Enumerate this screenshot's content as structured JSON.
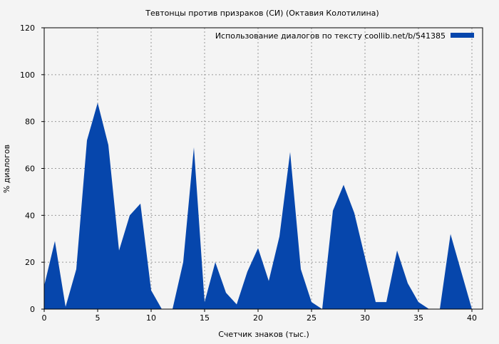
{
  "chart_data": {
    "type": "area",
    "title": "Тевтонцы против призраков (СИ) (Октавия Колотилина)",
    "xlabel": "Счетчик знаков (тыс.)",
    "ylabel": "% диалогов",
    "xlim": [
      0,
      41
    ],
    "ylim": [
      0,
      120
    ],
    "xticks": [
      0,
      5,
      10,
      15,
      20,
      25,
      30,
      35,
      40
    ],
    "yticks": [
      0,
      20,
      40,
      60,
      80,
      100,
      120
    ],
    "grid": true,
    "legend_position": "top-right",
    "series": [
      {
        "name": "Использование диалогов по тексту  coollib.net/b/541385",
        "color": "#0646ac",
        "x": [
          0,
          1,
          2,
          3,
          4,
          5,
          6,
          7,
          8,
          9,
          10,
          11,
          12,
          13,
          14,
          15,
          16,
          17,
          18,
          19,
          20,
          21,
          22,
          23,
          24,
          25,
          26,
          27,
          28,
          29,
          30,
          31,
          32,
          33,
          34,
          35,
          36,
          37,
          38,
          39,
          40
        ],
        "values": [
          10,
          29,
          1,
          17,
          72,
          88,
          70,
          25,
          40,
          45,
          8,
          0,
          0,
          20,
          69,
          3,
          20,
          7,
          2,
          16,
          26,
          12,
          31,
          67,
          17,
          3,
          0,
          42,
          53,
          41,
          22,
          3,
          3,
          25,
          11,
          3,
          0,
          0,
          32,
          16,
          0
        ]
      }
    ]
  }
}
